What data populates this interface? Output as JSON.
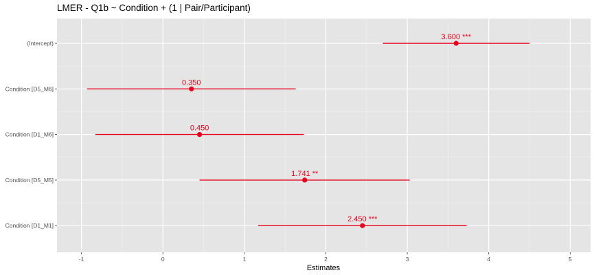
{
  "chart_data": {
    "type": "scatter",
    "subtype": "coefficient-plot",
    "title": "LMER - Q1b ~ Condition + (1 | Pair/Participant)",
    "xlabel": "Estimates",
    "ylabel": "",
    "xlim": [
      -1.3,
      5.25
    ],
    "x_ticks": [
      "-1",
      "0",
      "1",
      "2",
      "3",
      "4",
      "5"
    ],
    "x_tick_values": [
      -1,
      0,
      1,
      2,
      3,
      4,
      5
    ],
    "grid": true,
    "background": "#e5e5e5",
    "point_color": "#e8001c",
    "terms": [
      {
        "term": "(Intercept)",
        "estimate": 3.6,
        "ci_low": 2.7,
        "ci_high": 4.5,
        "label": "3.600 ***"
      },
      {
        "term": "Condition [D5_M6]",
        "estimate": 0.35,
        "ci_low": -0.93,
        "ci_high": 1.63,
        "label": "0.350"
      },
      {
        "term": "Condition [D1_M6]",
        "estimate": 0.45,
        "ci_low": -0.83,
        "ci_high": 1.73,
        "label": "0.450"
      },
      {
        "term": "Condition [D5_M5]",
        "estimate": 1.741,
        "ci_low": 0.45,
        "ci_high": 3.03,
        "label": "1.741 **"
      },
      {
        "term": "Condition [D1_M1]",
        "estimate": 2.45,
        "ci_low": 1.17,
        "ci_high": 3.73,
        "label": "2.450 ***"
      }
    ]
  }
}
